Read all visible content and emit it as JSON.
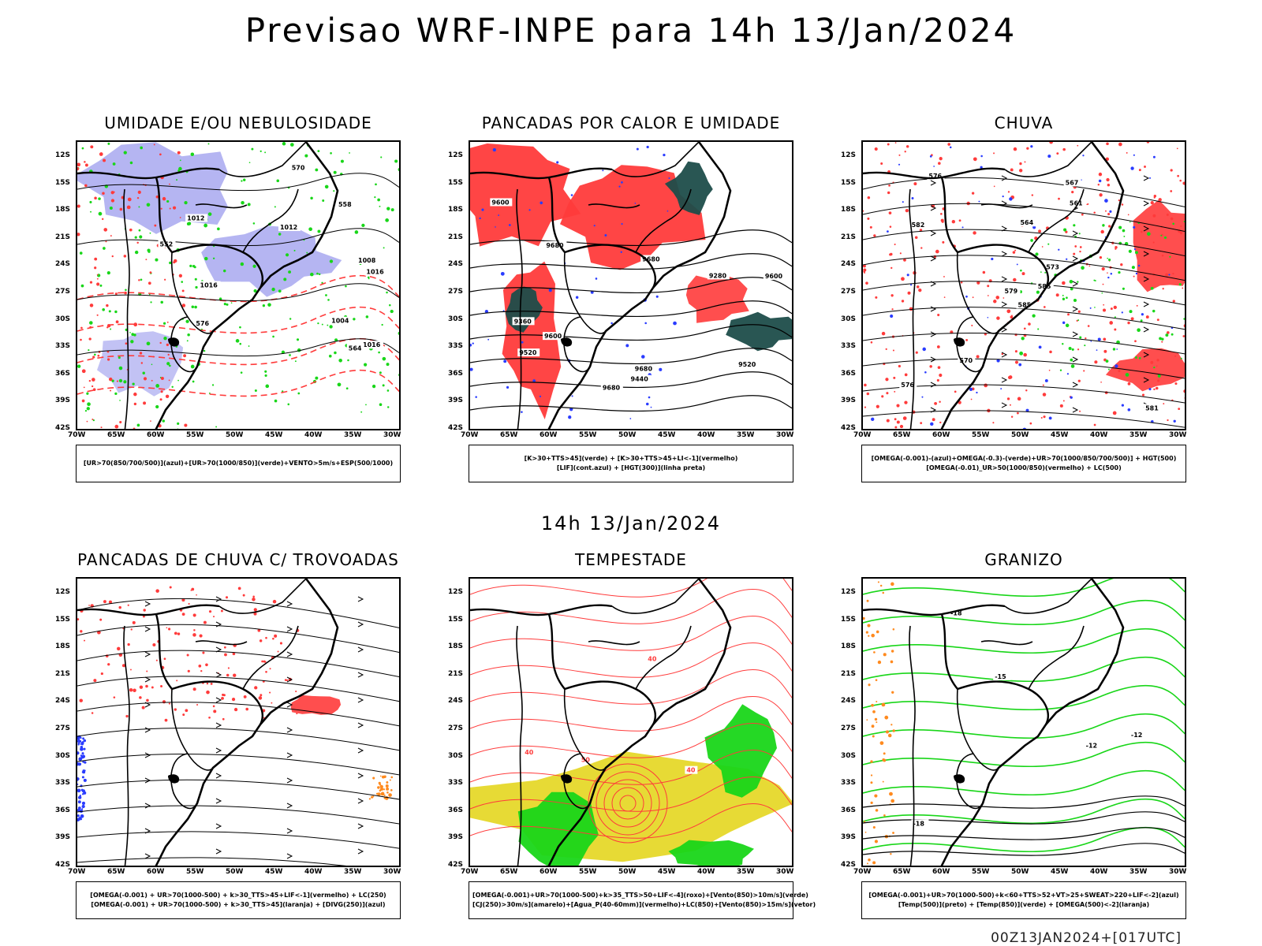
{
  "header": {
    "title": "Previsao WRF-INPE  para 14h 13/Jan/2024",
    "mid_title": "14h 13/Jan/2024",
    "footer": "00Z13JAN2024+[017UTC]"
  },
  "axes": {
    "lat_labels": [
      "12S",
      "15S",
      "18S",
      "21S",
      "24S",
      "27S",
      "30S",
      "33S",
      "36S",
      "39S",
      "42S"
    ],
    "lon_labels": [
      "70W",
      "65W",
      "60W",
      "55W",
      "50W",
      "45W",
      "40W",
      "35W",
      "30W"
    ]
  },
  "colors": {
    "red": "#ff3b3b",
    "green": "#19d619",
    "blue": "#2a3cff",
    "lavender": "#a8a8f0",
    "darkteal": "#1e4d4a",
    "yellow": "#e6d82a",
    "orange": "#ff8a1e"
  },
  "panels": [
    {
      "title": "UMIDADE E/OU NEBULOSIDADE",
      "legend": [
        "[UR>70(850/700/500)](azul)+[UR>70(1000/850)](verde)+VENTO>5m/s+ESP(500/1000)"
      ],
      "contour_labels": [
        "1012",
        "1008",
        "1012",
        "1016",
        "1016",
        "1016",
        "576",
        "570",
        "564",
        "558",
        "552",
        "1004"
      ]
    },
    {
      "title": "PANCADAS POR CALOR E UMIDADE",
      "legend": [
        "[K>30+TTS>45](verde) + [K>30+TTS>45+LI<-1](vermelho)",
        "[LIF](cont.azul) + [HGT(300)](linha preta)"
      ],
      "contour_labels": [
        "9680",
        "9680",
        "9680",
        "9600",
        "9600",
        "9520",
        "9440",
        "9360",
        "9280",
        "9680",
        "9600",
        "9520"
      ]
    },
    {
      "title": "CHUVA",
      "legend": [
        "[OMEGA(-0.001)-(azul)+OMEGA(-0.3)-(verde)+UR>70(1000/850/700/500)] + HGT(500)",
        "[OMEGA(-0.01)_UR>50(1000/850)(vermelho) + LC(500)"
      ],
      "contour_labels": [
        "585",
        "582",
        "579",
        "576",
        "573",
        "570",
        "567",
        "564",
        "561",
        "585",
        "576",
        "581"
      ]
    },
    {
      "title": "PANCADAS DE CHUVA C/ TROVOADAS",
      "legend": [
        "[OMEGA(-0.001) + UR>70(1000-500) + k>30_TTS>45+LIF<-1](vermelho) + LC(250)",
        "[OMEGA(-0.001) + UR>70(1000-500) + k>30_TTS>45](laranja) + [DIVG(250)](azul)"
      ],
      "contour_labels": []
    },
    {
      "title": "TEMPESTADE",
      "legend": [
        "[OMEGA(-0.001)+UR>70(1000-500)+k>35_TTS>50+LIF<-4](roxo)+[Vento(850)>10m/s](verde)",
        "[CJ(250)>30m/s](amarelo)+[Agua_P(40-60mm)](vermelho)+LC(850)+[Vento(850)>15m/s](vetor)"
      ],
      "contour_labels": [
        "40",
        "40",
        "50",
        "40"
      ]
    },
    {
      "title": "GRANIZO",
      "legend": [
        "[OMEGA(-0.001)+UR>70(1000-500)+k<60+TTS>52+VT>25+SWEAT>220+LIF<-2](azul)",
        "[Temp(500)](preto) + [Temp(850)](verde) + [OMEGA(500)<-2](laranja)"
      ],
      "contour_labels": [
        "-12",
        "-12",
        "-18",
        "-18",
        "-15"
      ]
    }
  ]
}
